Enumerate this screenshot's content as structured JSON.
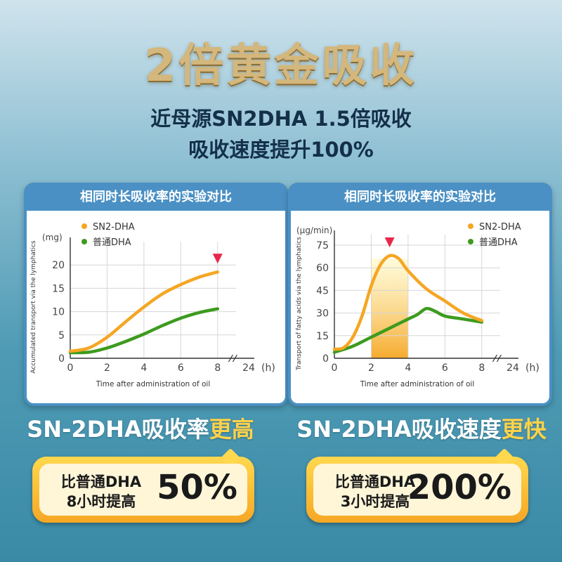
{
  "headline": "2倍黄金吸收",
  "subline1": "近母源SN2DHA 1.5倍吸收",
  "subline2": "吸收速度提升100%",
  "colors": {
    "sn2": "#f5a623",
    "normal": "#3d9b1e",
    "panel_blue": "#4a90c4",
    "headline_gold": "#d3b77c"
  },
  "chart_data": [
    {
      "type": "line",
      "title": "相同时长吸收率的实验对比",
      "unit": "(mg)",
      "ylabel": "Accumulated transport via the lymphatics",
      "xlabel": "Time after administration of oil",
      "x_ticks": [
        "0",
        "2",
        "4",
        "6",
        "8",
        "24"
      ],
      "x_unit": "(h)",
      "y_ticks": [
        0,
        5,
        10,
        15,
        20
      ],
      "ylim": [
        0,
        25
      ],
      "xlim": [
        0,
        9
      ],
      "grid": true,
      "legend": "top-left",
      "marker_icon": "red-triangle-marker",
      "series": [
        {
          "name": "SN2-DHA",
          "x": [
            0,
            1,
            2,
            3,
            4,
            5,
            6,
            7,
            8
          ],
          "y": [
            1.5,
            2.2,
            4.5,
            7.8,
            11,
            13.8,
            15.8,
            17.4,
            18.5
          ]
        },
        {
          "name": "普通DHA",
          "x": [
            0,
            1,
            2,
            3,
            4,
            5,
            6,
            7,
            8
          ],
          "y": [
            1.2,
            1.3,
            2.2,
            3.6,
            5.2,
            7,
            8.6,
            9.8,
            10.6
          ]
        }
      ]
    },
    {
      "type": "line",
      "title": "相同时长吸收率的实验对比",
      "unit": "(μg/min)",
      "ylabel": "Transport of fatty acids via the lymphatics",
      "xlabel": "Time after administration of oil",
      "x_ticks": [
        "0",
        "2",
        "4",
        "6",
        "8",
        "24"
      ],
      "x_unit": "(h)",
      "y_ticks": [
        0,
        15,
        30,
        45,
        60,
        75
      ],
      "ylim": [
        0,
        82
      ],
      "xlim": [
        0,
        9
      ],
      "highlight_band": [
        2,
        4
      ],
      "grid": true,
      "legend": "top-right",
      "marker_icon": "red-triangle-marker",
      "series": [
        {
          "name": "SN2-DHA",
          "x": [
            0,
            0.5,
            1,
            1.5,
            2,
            2.5,
            3,
            3.5,
            4,
            5,
            6,
            7,
            8
          ],
          "y": [
            6,
            7,
            14,
            28,
            48,
            62,
            68,
            66,
            58,
            46,
            38,
            30,
            25
          ]
        },
        {
          "name": "普通DHA",
          "x": [
            0,
            1,
            2,
            3,
            4,
            4.5,
            5,
            5.5,
            6,
            7,
            8
          ],
          "y": [
            4,
            8,
            14,
            20,
            26,
            29,
            33,
            31,
            28,
            26,
            24
          ]
        }
      ]
    }
  ],
  "claims": [
    {
      "prefix": "SN-2DHA吸收率",
      "highlight": "更高"
    },
    {
      "prefix": "SN-2DHA吸收速度",
      "highlight": "更快"
    }
  ],
  "badges": [
    {
      "line1": "比普通DHA",
      "line2": "8小时提高",
      "percent": "50%"
    },
    {
      "line1": "比普通DHA",
      "line2": "3小时提高",
      "percent": "200%"
    }
  ]
}
